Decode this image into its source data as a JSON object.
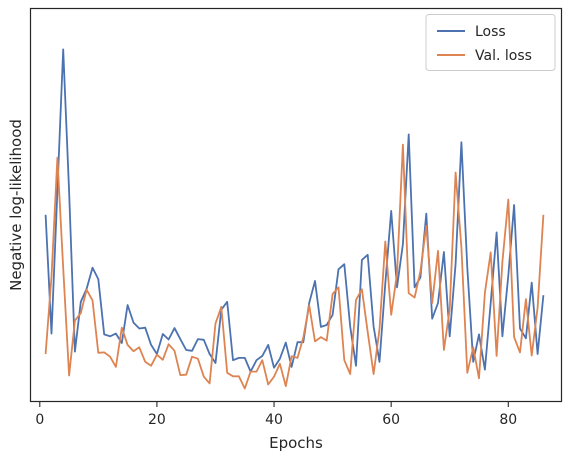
{
  "chart_data": {
    "type": "line",
    "title": "",
    "xlabel": "Epochs",
    "ylabel": "Negative log-likelihood",
    "xlim": [
      -1.5,
      89
    ],
    "ylim": [
      0,
      1
    ],
    "x_ticks": [
      0,
      20,
      40,
      60,
      80
    ],
    "y_ticks_shown": false,
    "grid": false,
    "legend_position": "top-right",
    "series": [
      {
        "name": "Loss",
        "color": "#4c72b0",
        "x": [
          1,
          2,
          3,
          4,
          5,
          6,
          7,
          8,
          9,
          10,
          11,
          12,
          13,
          14,
          15,
          16,
          17,
          18,
          19,
          20,
          21,
          22,
          23,
          24,
          25,
          26,
          27,
          28,
          29,
          30,
          31,
          32,
          33,
          34,
          35,
          36,
          37,
          38,
          39,
          40,
          41,
          42,
          43,
          44,
          45,
          46,
          47,
          48,
          49,
          50,
          51,
          52,
          53,
          54,
          55,
          56,
          57,
          58,
          59,
          60,
          61,
          62,
          63,
          64,
          65,
          66,
          67,
          68,
          69,
          70,
          71,
          72,
          73,
          74,
          75,
          76,
          77,
          78,
          79,
          80,
          81,
          82,
          83,
          84,
          85,
          86
        ],
        "y": [
          0.475,
          0.172,
          0.537,
          0.897,
          0.535,
          0.126,
          0.253,
          0.286,
          0.34,
          0.311,
          0.17,
          0.165,
          0.172,
          0.148,
          0.245,
          0.2,
          0.185,
          0.187,
          0.143,
          0.12,
          0.171,
          0.157,
          0.186,
          0.158,
          0.13,
          0.128,
          0.158,
          0.156,
          0.12,
          0.097,
          0.233,
          0.253,
          0.104,
          0.11,
          0.11,
          0.075,
          0.104,
          0.115,
          0.143,
          0.085,
          0.108,
          0.149,
          0.087,
          0.15,
          0.15,
          0.25,
          0.306,
          0.189,
          0.194,
          0.22,
          0.336,
          0.349,
          0.19,
          0.09,
          0.36,
          0.373,
          0.19,
          0.1,
          0.3,
          0.485,
          0.29,
          0.4,
          0.68,
          0.29,
          0.315,
          0.478,
          0.21,
          0.25,
          0.38,
          0.165,
          0.35,
          0.66,
          0.34,
          0.1,
          0.17,
          0.08,
          0.25,
          0.43,
          0.165,
          0.32,
          0.5,
          0.185,
          0.16,
          0.302,
          0.12,
          0.27
        ]
      },
      {
        "name": "Val. loss",
        "color": "#dd8452",
        "x": [
          1,
          2,
          3,
          4,
          5,
          6,
          7,
          8,
          9,
          10,
          11,
          12,
          13,
          14,
          15,
          16,
          17,
          18,
          19,
          20,
          21,
          22,
          23,
          24,
          25,
          26,
          27,
          28,
          29,
          30,
          31,
          32,
          33,
          34,
          35,
          36,
          37,
          38,
          39,
          40,
          41,
          42,
          43,
          44,
          45,
          46,
          47,
          48,
          49,
          50,
          51,
          52,
          53,
          54,
          55,
          56,
          57,
          58,
          59,
          60,
          61,
          62,
          63,
          64,
          65,
          66,
          67,
          68,
          69,
          70,
          71,
          72,
          73,
          74,
          75,
          76,
          77,
          78,
          79,
          80,
          81,
          82,
          83,
          84,
          85,
          86
        ],
        "y": [
          0.12,
          0.317,
          0.621,
          0.339,
          0.065,
          0.205,
          0.224,
          0.284,
          0.257,
          0.123,
          0.124,
          0.113,
          0.087,
          0.187,
          0.143,
          0.127,
          0.137,
          0.1,
          0.09,
          0.118,
          0.105,
          0.145,
          0.128,
          0.066,
          0.067,
          0.113,
          0.108,
          0.062,
          0.045,
          0.198,
          0.24,
          0.072,
          0.063,
          0.063,
          0.032,
          0.075,
          0.075,
          0.104,
          0.042,
          0.062,
          0.095,
          0.038,
          0.114,
          0.11,
          0.162,
          0.244,
          0.152,
          0.163,
          0.154,
          0.273,
          0.29,
          0.104,
          0.069,
          0.258,
          0.285,
          0.176,
          0.069,
          0.183,
          0.407,
          0.22,
          0.325,
          0.654,
          0.275,
          0.264,
          0.331,
          0.447,
          0.25,
          0.383,
          0.13,
          0.234,
          0.583,
          0.392,
          0.072,
          0.137,
          0.058,
          0.276,
          0.379,
          0.115,
          0.355,
          0.514,
          0.163,
          0.124,
          0.26,
          0.116,
          0.238,
          0.475
        ]
      }
    ]
  }
}
